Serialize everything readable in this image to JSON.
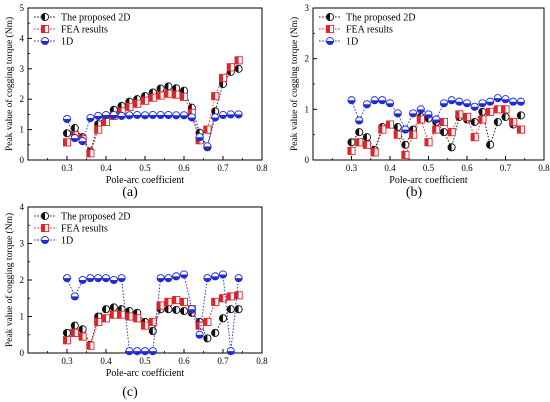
{
  "figure": {
    "subplots": [
      {
        "label": "(a)"
      },
      {
        "label": "(b)"
      },
      {
        "label": "(c)"
      }
    ]
  },
  "colors": {
    "proposed_2d": "#111111",
    "fea": "#e0242a",
    "one_d": "#1f2bd6",
    "background": "#ffffff"
  },
  "chart_data": [
    {
      "type": "line",
      "label": "(a)",
      "xlabel": "Pole-arc coefficient",
      "ylabel": "Peak value of cogging torque (Nm)",
      "xlim": [
        0.2,
        0.8
      ],
      "ylim": [
        0,
        5
      ],
      "xticks": [
        0.3,
        0.4,
        0.5,
        0.6,
        0.7,
        0.8
      ],
      "yticks": [
        0,
        1,
        2,
        3,
        4,
        5
      ],
      "legend_position": "top-left",
      "x": [
        0.3,
        0.32,
        0.34,
        0.36,
        0.38,
        0.4,
        0.42,
        0.44,
        0.46,
        0.48,
        0.5,
        0.52,
        0.54,
        0.56,
        0.58,
        0.6,
        0.62,
        0.64,
        0.66,
        0.68,
        0.7,
        0.72,
        0.74
      ],
      "series": [
        {
          "name": "The proposed 2D",
          "marker": "half-circle",
          "values": [
            0.88,
            1.05,
            0.75,
            0.28,
            1.18,
            1.45,
            1.65,
            1.78,
            1.92,
            2.0,
            2.1,
            2.22,
            2.35,
            2.42,
            2.36,
            2.28,
            1.72,
            0.9,
            0.42,
            1.6,
            2.5,
            2.9,
            3.0
          ]
        },
        {
          "name": "FEA results",
          "marker": "half-square",
          "values": [
            0.58,
            0.82,
            0.68,
            0.22,
            1.0,
            1.25,
            1.45,
            1.6,
            1.75,
            1.85,
            1.95,
            2.05,
            2.12,
            2.18,
            2.15,
            2.08,
            1.55,
            0.65,
            1.0,
            2.1,
            2.7,
            3.05,
            3.28
          ]
        },
        {
          "name": "1D",
          "marker": "half-circle",
          "values": [
            1.35,
            0.72,
            0.62,
            1.38,
            1.45,
            1.48,
            1.48,
            1.45,
            1.47,
            1.48,
            1.47,
            1.48,
            1.48,
            1.48,
            1.47,
            1.47,
            1.4,
            0.75,
            0.45,
            1.4,
            1.48,
            1.5,
            1.5
          ]
        }
      ]
    },
    {
      "type": "line",
      "label": "(b)",
      "xlabel": "Pole-arc coefficient",
      "ylabel": "Peak value of cogging torque (Nm)",
      "xlim": [
        0.2,
        0.8
      ],
      "ylim": [
        0,
        3
      ],
      "xticks": [
        0.3,
        0.4,
        0.5,
        0.6,
        0.7,
        0.8
      ],
      "yticks": [
        0,
        1,
        2,
        3
      ],
      "legend_position": "top-left",
      "x": [
        0.3,
        0.32,
        0.34,
        0.36,
        0.38,
        0.4,
        0.42,
        0.44,
        0.46,
        0.48,
        0.5,
        0.52,
        0.54,
        0.56,
        0.58,
        0.6,
        0.62,
        0.64,
        0.66,
        0.68,
        0.7,
        0.72,
        0.74
      ],
      "series": [
        {
          "name": "The proposed 2D",
          "marker": "half-circle",
          "values": [
            0.35,
            0.55,
            0.45,
            0.2,
            0.65,
            0.7,
            0.65,
            0.3,
            0.6,
            0.85,
            0.82,
            0.75,
            0.55,
            0.25,
            0.85,
            0.8,
            0.75,
            0.95,
            0.3,
            0.75,
            0.85,
            0.7,
            0.88
          ]
        },
        {
          "name": "FEA results",
          "marker": "half-square",
          "values": [
            0.18,
            0.35,
            0.3,
            0.15,
            0.6,
            0.7,
            0.5,
            0.1,
            0.5,
            0.8,
            0.35,
            0.6,
            0.75,
            0.55,
            0.9,
            0.85,
            0.45,
            0.8,
            0.95,
            1.0,
            1.0,
            0.75,
            0.6
          ]
        },
        {
          "name": "1D",
          "marker": "half-circle",
          "values": [
            1.18,
            0.78,
            1.1,
            1.18,
            1.18,
            1.12,
            0.92,
            0.6,
            0.92,
            1.0,
            0.9,
            0.8,
            1.12,
            1.18,
            1.15,
            1.12,
            1.05,
            1.12,
            1.15,
            1.22,
            1.2,
            1.15,
            1.15
          ]
        }
      ]
    },
    {
      "type": "line",
      "label": "(c)",
      "xlabel": "Pole-arc coefficient",
      "ylabel": "Peak value of cogging torque (Nm)",
      "xlim": [
        0.2,
        0.8
      ],
      "ylim": [
        0,
        4
      ],
      "xticks": [
        0.3,
        0.4,
        0.5,
        0.6,
        0.7,
        0.8
      ],
      "yticks": [
        0,
        1,
        2,
        3,
        4
      ],
      "legend_position": "top-left",
      "x": [
        0.3,
        0.32,
        0.34,
        0.36,
        0.38,
        0.4,
        0.42,
        0.44,
        0.46,
        0.48,
        0.5,
        0.52,
        0.54,
        0.56,
        0.58,
        0.6,
        0.62,
        0.64,
        0.66,
        0.68,
        0.7,
        0.72,
        0.74
      ],
      "series": [
        {
          "name": "The proposed 2D",
          "marker": "half-circle",
          "values": [
            0.55,
            0.75,
            0.65,
            0.22,
            1.0,
            1.2,
            1.25,
            1.2,
            1.15,
            1.1,
            0.85,
            0.6,
            1.2,
            1.2,
            1.18,
            1.15,
            1.1,
            0.85,
            0.4,
            0.55,
            0.95,
            1.2,
            1.2
          ]
        },
        {
          "name": "FEA results",
          "marker": "half-square",
          "values": [
            0.35,
            0.55,
            0.45,
            0.2,
            0.85,
            0.95,
            1.05,
            1.05,
            1.0,
            0.95,
            0.75,
            0.85,
            1.3,
            1.4,
            1.45,
            1.4,
            1.2,
            0.75,
            0.85,
            1.4,
            1.5,
            1.55,
            1.58
          ]
        },
        {
          "name": "1D",
          "marker": "half-circle",
          "values": [
            2.05,
            1.55,
            2.0,
            2.05,
            2.05,
            2.05,
            2.0,
            2.05,
            0.05,
            0.05,
            0.05,
            0.05,
            2.05,
            2.05,
            2.1,
            2.15,
            1.2,
            0.5,
            2.05,
            2.1,
            2.15,
            0.05,
            2.05
          ]
        }
      ]
    }
  ]
}
